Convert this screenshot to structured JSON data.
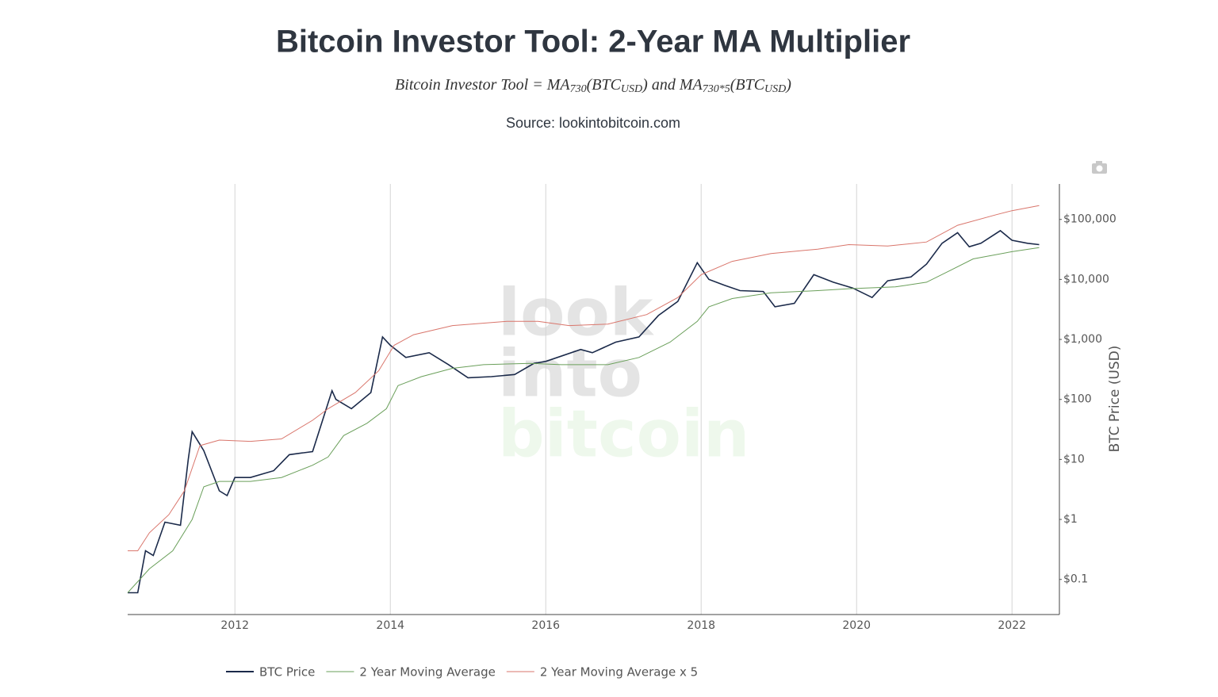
{
  "chart_data": {
    "type": "line",
    "title": "Bitcoin Investor Tool: 2-Year MA Multiplier",
    "formula": [
      "Bitcoin Investor Tool = MA",
      "730",
      "(BTC",
      "USD",
      ") and MA",
      "730*5",
      "(BTC",
      "USD",
      ")"
    ],
    "source": "Source: lookintobitcoin.com",
    "watermark": [
      "look",
      "into",
      "bitcoin"
    ],
    "y_axis_label": "BTC Price (USD)",
    "log_scale": true,
    "grid": "x",
    "legend": "bottom",
    "xlim": [
      2010.62,
      2022.61
    ],
    "xticks": [
      2012,
      2014,
      2016,
      2018,
      2020,
      2022
    ],
    "ylim": [
      0.026,
      390000
    ],
    "yticks": [
      {
        "value": 0.1,
        "label": "$0.1"
      },
      {
        "value": 1,
        "label": "$1"
      },
      {
        "value": 10,
        "label": "$10"
      },
      {
        "value": 100,
        "label": "$100"
      },
      {
        "value": 1000,
        "label": "$1,000"
      },
      {
        "value": 10000,
        "label": "$10,000"
      },
      {
        "value": 100000,
        "label": "$100,000"
      }
    ],
    "series": [
      {
        "name": "BTC Price",
        "color": "#1b2a4a",
        "x": [
          2010.62,
          2010.75,
          2010.85,
          2010.95,
          2011.1,
          2011.3,
          2011.4,
          2011.45,
          2011.6,
          2011.8,
          2011.9,
          2012.0,
          2012.2,
          2012.5,
          2012.7,
          2013.0,
          2013.25,
          2013.3,
          2013.5,
          2013.75,
          2013.9,
          2014.0,
          2014.2,
          2014.5,
          2014.75,
          2015.0,
          2015.3,
          2015.6,
          2015.85,
          2016.0,
          2016.45,
          2016.6,
          2016.9,
          2017.2,
          2017.45,
          2017.7,
          2017.95,
          2018.1,
          2018.3,
          2018.5,
          2018.8,
          2018.95,
          2019.2,
          2019.45,
          2019.7,
          2019.95,
          2020.2,
          2020.4,
          2020.7,
          2020.9,
          2021.1,
          2021.3,
          2021.45,
          2021.6,
          2021.85,
          2022.0,
          2022.2,
          2022.35
        ],
        "values": [
          0.06,
          0.06,
          0.3,
          0.25,
          0.9,
          0.8,
          10,
          29,
          14,
          3,
          2.5,
          5,
          5,
          6.5,
          12,
          13.5,
          140,
          100,
          70,
          130,
          1100,
          800,
          500,
          600,
          380,
          230,
          240,
          260,
          400,
          430,
          680,
          600,
          900,
          1100,
          2500,
          4300,
          19000,
          10000,
          8000,
          6500,
          6300,
          3500,
          4000,
          12000,
          9000,
          7200,
          5000,
          9500,
          11000,
          18000,
          40000,
          60000,
          35000,
          40000,
          65000,
          45000,
          40000,
          38000
        ]
      },
      {
        "name": "2 Year Moving Average",
        "color": "#6a9f5a",
        "x": [
          2010.62,
          2010.9,
          2011.2,
          2011.45,
          2011.6,
          2011.8,
          2012.2,
          2012.6,
          2013.0,
          2013.2,
          2013.4,
          2013.7,
          2013.95,
          2014.1,
          2014.4,
          2014.8,
          2015.2,
          2015.8,
          2016.2,
          2016.8,
          2017.2,
          2017.6,
          2017.95,
          2018.1,
          2018.4,
          2018.9,
          2019.5,
          2019.9,
          2020.5,
          2020.9,
          2021.2,
          2021.5,
          2022.0,
          2022.35
        ],
        "values": [
          0.06,
          0.15,
          0.3,
          1.0,
          3.5,
          4.3,
          4.3,
          5,
          8,
          11,
          25,
          40,
          70,
          170,
          240,
          330,
          380,
          400,
          380,
          380,
          500,
          900,
          2000,
          3500,
          4800,
          6000,
          6500,
          7000,
          7500,
          9000,
          14000,
          22000,
          29000,
          34000
        ]
      },
      {
        "name": "2 Year Moving Average x 5",
        "color": "#d9756b",
        "x": [
          2010.62,
          2010.75,
          2010.9,
          2011.15,
          2011.35,
          2011.55,
          2011.8,
          2012.2,
          2012.6,
          2013.0,
          2013.2,
          2013.55,
          2013.85,
          2014.05,
          2014.3,
          2014.8,
          2015.5,
          2015.9,
          2016.3,
          2016.8,
          2017.3,
          2017.7,
          2018.0,
          2018.4,
          2018.9,
          2019.5,
          2019.9,
          2020.4,
          2020.9,
          2021.3,
          2021.8,
          2022.0,
          2022.35
        ],
        "values": [
          0.3,
          0.3,
          0.6,
          1.2,
          3,
          17,
          21,
          20,
          22,
          45,
          70,
          130,
          300,
          800,
          1200,
          1700,
          2000,
          2000,
          1700,
          1800,
          2600,
          5000,
          12000,
          20000,
          27000,
          32000,
          38000,
          36000,
          42000,
          80000,
          120000,
          140000,
          170000
        ]
      }
    ]
  }
}
